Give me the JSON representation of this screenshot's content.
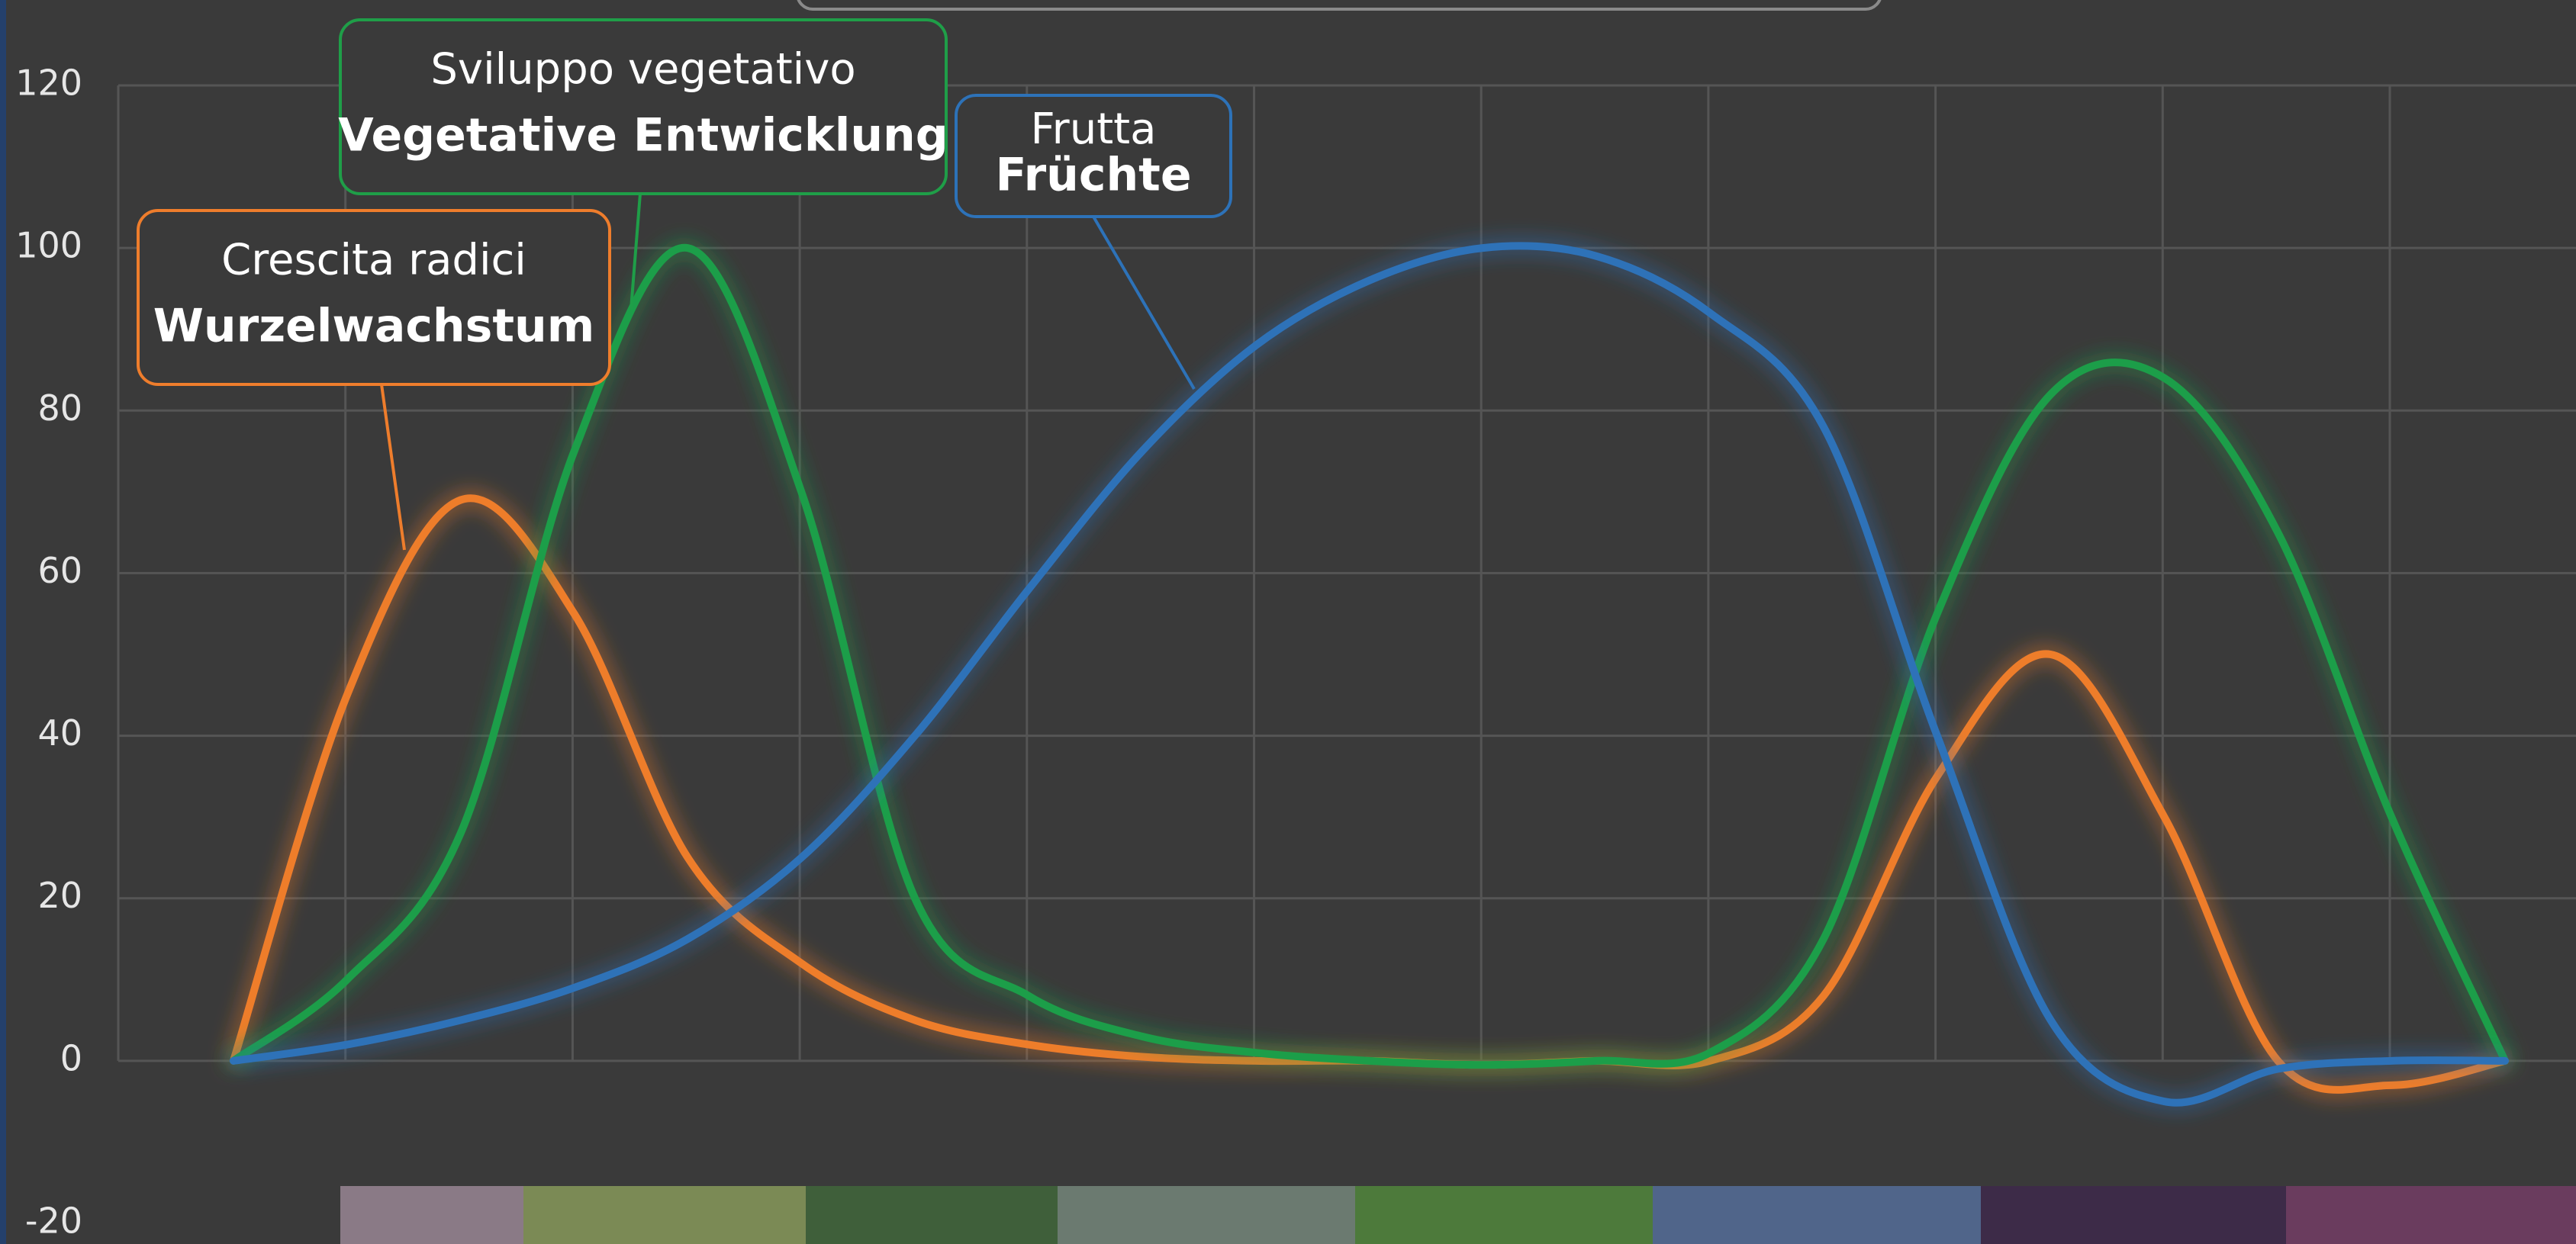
{
  "chart_data": {
    "type": "line",
    "categories": [
      null,
      null,
      null,
      null,
      null,
      null,
      null,
      null,
      null,
      null,
      null,
      null,
      null,
      null,
      null,
      null,
      null,
      null,
      null,
      null,
      null
    ],
    "series": [
      {
        "name": "Wurzelwachstum",
        "color": "#ee7d2c",
        "values": [
          0,
          45,
          69,
          55,
          25,
          12,
          5,
          2,
          0.5,
          0,
          0,
          -0.5,
          0,
          0,
          8,
          35,
          50,
          30,
          0,
          -3,
          0
        ]
      },
      {
        "name": "Vegetative Entwicklung",
        "color": "#1f9e48",
        "values": [
          0,
          10,
          28,
          75,
          100,
          70,
          20,
          8,
          3,
          1,
          0,
          -0.5,
          0,
          1,
          15,
          55,
          82,
          84,
          65,
          30,
          0
        ]
      },
      {
        "name": "Früchte",
        "color": "#2d72b8",
        "values": [
          0,
          2,
          5,
          9,
          15,
          25,
          40,
          58,
          75,
          88,
          96,
          100,
          99,
          92,
          78,
          40,
          5,
          -5,
          -1,
          0,
          0
        ]
      }
    ],
    "ylim": [
      -20,
      120
    ],
    "yticks": [
      -20,
      0,
      20,
      40,
      60,
      80,
      100,
      120
    ],
    "grid": true,
    "annotations": [
      {
        "text": "Crescita radici",
        "bold": "Wurzelwachstum",
        "series": 0
      },
      {
        "text": "Sviluppo vegetativo",
        "bold": "Vegetative Entwicklung",
        "series": 1
      },
      {
        "text": "Frutta",
        "bold": "Früchte",
        "series": 2
      }
    ]
  }
}
